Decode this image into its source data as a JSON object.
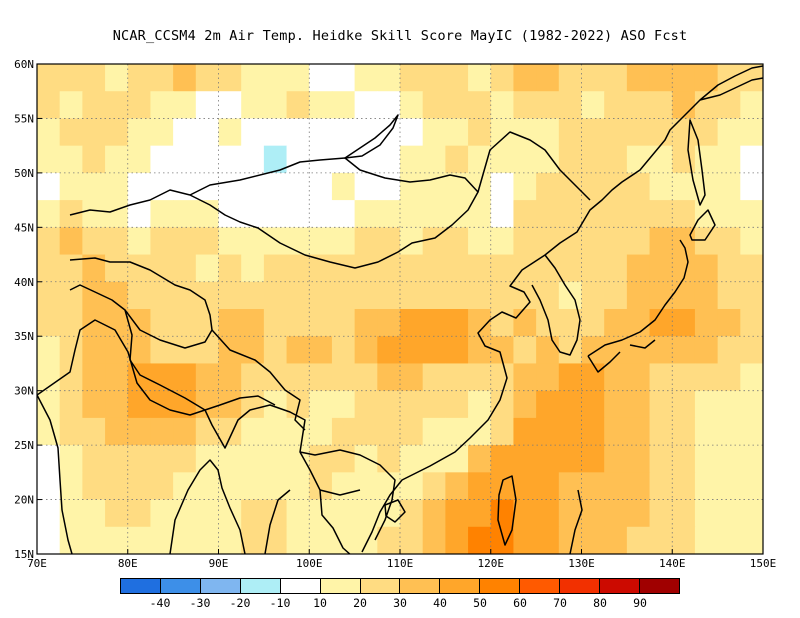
{
  "title": "NCAR_CCSM4  2m Air Temp. Heidke Skill Score MayIC (1982-2022) ASO Fcst",
  "map": {
    "lon_range": [
      70,
      150
    ],
    "lat_range": [
      15,
      60
    ],
    "lon_ticks": [
      {
        "value": 70,
        "label": "70E"
      },
      {
        "value": 80,
        "label": "80E"
      },
      {
        "value": 90,
        "label": "90E"
      },
      {
        "value": 100,
        "label": "100E"
      },
      {
        "value": 110,
        "label": "110E"
      },
      {
        "value": 120,
        "label": "120E"
      },
      {
        "value": 130,
        "label": "130E"
      },
      {
        "value": 140,
        "label": "140E"
      },
      {
        "value": 150,
        "label": "150E"
      }
    ],
    "lat_ticks": [
      {
        "value": 15,
        "label": "15N"
      },
      {
        "value": 20,
        "label": "20N"
      },
      {
        "value": 25,
        "label": "25N"
      },
      {
        "value": 30,
        "label": "30N"
      },
      {
        "value": 35,
        "label": "35N"
      },
      {
        "value": 40,
        "label": "40N"
      },
      {
        "value": 45,
        "label": "45N"
      },
      {
        "value": 50,
        "label": "50N"
      },
      {
        "value": 55,
        "label": "55N"
      },
      {
        "value": 60,
        "label": "60N"
      }
    ],
    "gridlines": true,
    "coastline_color": "#000000"
  },
  "colorbar": {
    "colors": [
      "#1f6fe0",
      "#3d8fe8",
      "#7fb6f0",
      "#aeeef6",
      "#ffffff",
      "#fff4a8",
      "#ffdc82",
      "#ffc053",
      "#ffa62a",
      "#ff8200",
      "#ff5a00",
      "#f23000",
      "#cc0a00",
      "#a00000"
    ],
    "labels": [
      "-40",
      "-30",
      "-20",
      "-10",
      "10",
      "20",
      "30",
      "40",
      "50",
      "60",
      "70",
      "80",
      "90"
    ]
  },
  "chart_data": {
    "type": "heatmap",
    "title": "NCAR_CCSM4  2m Air Temp. Heidke Skill Score MayIC (1982-2022) ASO Fcst",
    "x": {
      "label": "",
      "range": [
        70,
        150
      ],
      "units": "degrees east"
    },
    "y": {
      "label": "",
      "range": [
        15,
        60
      ],
      "units": "degrees north"
    },
    "levels": [
      -40,
      -30,
      -20,
      -10,
      10,
      20,
      30,
      40,
      50,
      60,
      70,
      80,
      90
    ],
    "grid_step_deg": 2.5,
    "lons": [
      70,
      72.5,
      75,
      77.5,
      80,
      82.5,
      85,
      87.5,
      90,
      92.5,
      95,
      97.5,
      100,
      102.5,
      105,
      107.5,
      110,
      112.5,
      115,
      117.5,
      120,
      122.5,
      125,
      127.5,
      130,
      132.5,
      135,
      137.5,
      140,
      142.5,
      145,
      147.5
    ],
    "lats": [
      57.5,
      55,
      52.5,
      50,
      47.5,
      45,
      42.5,
      40,
      37.5,
      35,
      32.5,
      30,
      27.5,
      25,
      22.5,
      20,
      17.5,
      15
    ],
    "values": [
      [
        25,
        25,
        20,
        15,
        20,
        25,
        30,
        25,
        20,
        15,
        10,
        10,
        5,
        5,
        10,
        15,
        20,
        25,
        20,
        15,
        20,
        30,
        30,
        25,
        20,
        25,
        30,
        35,
        35,
        30,
        25,
        20
      ],
      [
        20,
        15,
        20,
        25,
        20,
        15,
        10,
        5,
        5,
        10,
        15,
        20,
        15,
        10,
        5,
        5,
        10,
        20,
        25,
        20,
        15,
        20,
        25,
        20,
        15,
        20,
        25,
        25,
        30,
        25,
        20,
        15
      ],
      [
        15,
        20,
        25,
        20,
        15,
        10,
        5,
        5,
        10,
        5,
        5,
        5,
        5,
        5,
        5,
        5,
        5,
        10,
        15,
        20,
        15,
        10,
        15,
        20,
        20,
        25,
        20,
        20,
        25,
        20,
        15,
        10
      ],
      [
        10,
        15,
        20,
        15,
        10,
        5,
        5,
        5,
        5,
        5,
        -12,
        5,
        5,
        5,
        5,
        5,
        10,
        15,
        20,
        15,
        10,
        10,
        15,
        20,
        25,
        20,
        15,
        15,
        20,
        15,
        10,
        5
      ],
      [
        5,
        10,
        15,
        10,
        5,
        5,
        5,
        5,
        5,
        5,
        5,
        5,
        5,
        10,
        5,
        5,
        10,
        15,
        15,
        10,
        5,
        15,
        20,
        20,
        25,
        25,
        20,
        15,
        15,
        10,
        10,
        5
      ],
      [
        15,
        20,
        15,
        10,
        5,
        10,
        15,
        10,
        5,
        5,
        5,
        5,
        5,
        5,
        10,
        15,
        10,
        15,
        15,
        10,
        5,
        20,
        25,
        20,
        20,
        25,
        20,
        25,
        20,
        15,
        10,
        10
      ],
      [
        25,
        30,
        25,
        20,
        15,
        20,
        25,
        20,
        15,
        10,
        10,
        10,
        10,
        15,
        20,
        20,
        15,
        20,
        20,
        15,
        15,
        20,
        25,
        25,
        20,
        20,
        25,
        30,
        30,
        25,
        20,
        15
      ],
      [
        25,
        25,
        30,
        25,
        20,
        25,
        20,
        15,
        20,
        15,
        20,
        20,
        20,
        25,
        25,
        20,
        25,
        25,
        25,
        20,
        20,
        25,
        20,
        20,
        20,
        25,
        30,
        35,
        35,
        30,
        25,
        20
      ],
      [
        20,
        25,
        30,
        30,
        25,
        20,
        25,
        20,
        25,
        20,
        25,
        25,
        20,
        25,
        25,
        20,
        25,
        25,
        25,
        20,
        20,
        25,
        20,
        15,
        20,
        25,
        30,
        35,
        35,
        30,
        25,
        20
      ],
      [
        20,
        25,
        35,
        35,
        30,
        25,
        20,
        25,
        30,
        30,
        25,
        25,
        25,
        25,
        30,
        35,
        40,
        45,
        40,
        30,
        25,
        30,
        20,
        20,
        25,
        30,
        35,
        40,
        40,
        35,
        30,
        25
      ],
      [
        15,
        20,
        30,
        35,
        30,
        25,
        20,
        25,
        30,
        30,
        25,
        30,
        30,
        25,
        30,
        40,
        45,
        45,
        40,
        35,
        30,
        25,
        30,
        25,
        30,
        35,
        35,
        35,
        35,
        30,
        25,
        20
      ],
      [
        10,
        20,
        30,
        35,
        40,
        45,
        40,
        35,
        30,
        25,
        20,
        25,
        25,
        20,
        25,
        30,
        30,
        25,
        25,
        20,
        20,
        30,
        35,
        40,
        40,
        35,
        30,
        25,
        25,
        20,
        20,
        15
      ],
      [
        15,
        25,
        30,
        35,
        40,
        45,
        45,
        35,
        30,
        25,
        15,
        20,
        15,
        15,
        20,
        25,
        25,
        20,
        20,
        15,
        20,
        30,
        40,
        45,
        40,
        35,
        30,
        25,
        20,
        15,
        15,
        10
      ],
      [
        10,
        20,
        25,
        30,
        35,
        35,
        30,
        25,
        20,
        15,
        10,
        15,
        15,
        20,
        20,
        20,
        20,
        15,
        10,
        15,
        25,
        40,
        45,
        45,
        40,
        35,
        30,
        25,
        20,
        15,
        10,
        10
      ],
      [
        5,
        15,
        20,
        25,
        25,
        25,
        20,
        15,
        15,
        15,
        10,
        15,
        20,
        20,
        15,
        20,
        15,
        15,
        15,
        30,
        40,
        45,
        45,
        40,
        40,
        35,
        30,
        25,
        20,
        15,
        10,
        10
      ],
      [
        5,
        10,
        20,
        25,
        20,
        20,
        15,
        10,
        15,
        15,
        15,
        15,
        20,
        15,
        10,
        10,
        15,
        20,
        30,
        40,
        45,
        45,
        45,
        35,
        30,
        35,
        30,
        25,
        20,
        15,
        10,
        10
      ],
      [
        5,
        10,
        15,
        20,
        20,
        15,
        10,
        10,
        15,
        20,
        20,
        15,
        15,
        10,
        10,
        15,
        20,
        30,
        40,
        45,
        50,
        45,
        40,
        35,
        30,
        30,
        30,
        25,
        20,
        15,
        10,
        10
      ],
      [
        5,
        10,
        15,
        15,
        15,
        10,
        10,
        10,
        15,
        20,
        20,
        15,
        10,
        10,
        15,
        20,
        25,
        35,
        45,
        50,
        55,
        45,
        40,
        35,
        30,
        30,
        25,
        25,
        20,
        15,
        10,
        10
      ]
    ]
  }
}
